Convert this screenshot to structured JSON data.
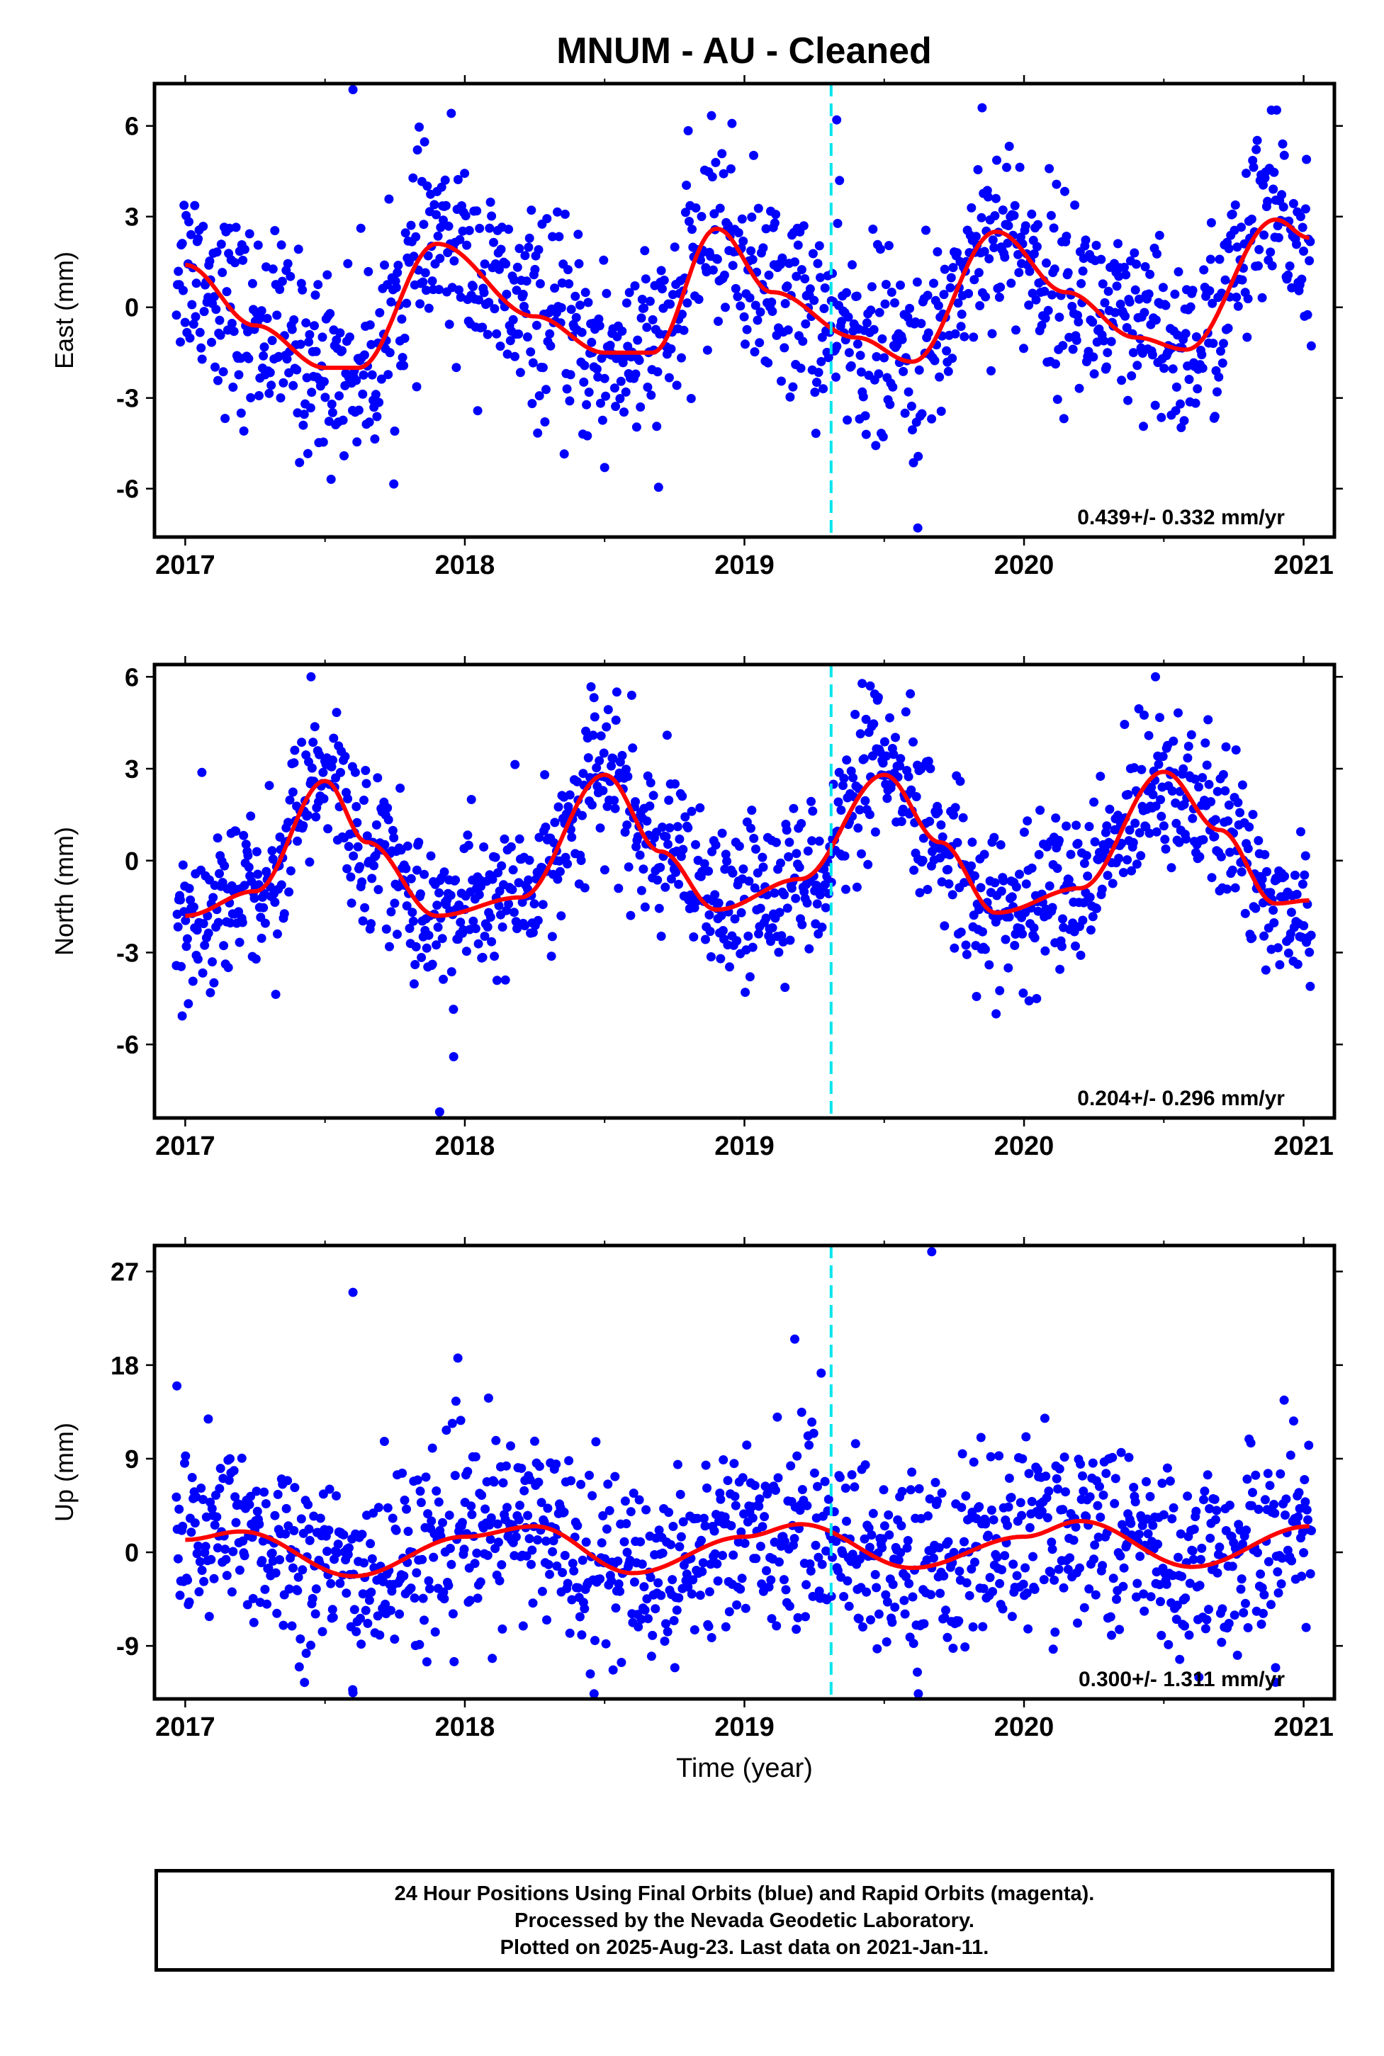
{
  "title": "MNUM  - AU - Cleaned",
  "xlabel": "Time (year)",
  "caption": [
    "24 Hour Positions Using Final Orbits (blue) and Rapid Orbits (magenta).",
    "Processed by the Nevada Geodetic Laboratory.",
    "Plotted on 2025-Aug-23. Last data on 2021-Jan-11."
  ],
  "colors": {
    "points": "#0000ff",
    "fit": "#ff0000",
    "event_line": "#00e5ee",
    "frame": "#000000"
  },
  "chart_data": [
    {
      "type": "scatter",
      "name": "east",
      "ylabel": "East (mm)",
      "xlim": [
        2016.89,
        2021.11
      ],
      "ylim": [
        -7.6,
        7.4
      ],
      "yticks": [
        -6,
        -3,
        0,
        3,
        6
      ],
      "xticks": [
        2017,
        2018,
        2019,
        2020,
        2021
      ],
      "event_line_x": 2019.31,
      "rate_label": "0.439+/- 0.332 mm/yr",
      "fit": {
        "x": [
          2017.0,
          2017.25,
          2017.5,
          2017.62,
          2017.9,
          2018.25,
          2018.5,
          2018.67,
          2018.9,
          2019.1,
          2019.4,
          2019.6,
          2019.9,
          2020.15,
          2020.4,
          2020.58,
          2020.9,
          2021.02
        ],
        "y": [
          1.4,
          -0.6,
          -2.0,
          -2.0,
          2.1,
          -0.3,
          -1.5,
          -1.5,
          2.6,
          0.5,
          -1.0,
          -1.8,
          2.5,
          0.5,
          -1.0,
          -1.4,
          2.9,
          2.3
        ]
      },
      "series": [
        {
          "name": "",
          "scatter": 1.6,
          "extra": [
            [
              2017.6,
              7.2
            ],
            [
              2019.33,
              6.2
            ],
            [
              2019.62,
              -7.3
            ],
            [
              2019.85,
              6.6
            ],
            [
              2018.5,
              -5.3
            ],
            [
              2017.2,
              -3.5
            ]
          ]
        }
      ]
    },
    {
      "type": "scatter",
      "name": "north",
      "ylabel": "North (mm)",
      "xlim": [
        2016.89,
        2021.11
      ],
      "ylim": [
        -8.4,
        6.4
      ],
      "yticks": [
        -6,
        -3,
        0,
        3,
        6
      ],
      "xticks": [
        2017,
        2018,
        2019,
        2020,
        2021
      ],
      "event_line_x": 2019.31,
      "rate_label": "0.204+/- 0.296 mm/yr",
      "fit": {
        "x": [
          2017.0,
          2017.25,
          2017.5,
          2017.65,
          2017.9,
          2018.2,
          2018.5,
          2018.7,
          2018.9,
          2019.2,
          2019.5,
          2019.7,
          2019.9,
          2020.2,
          2020.5,
          2020.7,
          2020.9,
          2021.02
        ],
        "y": [
          -1.8,
          -1.0,
          2.6,
          0.6,
          -1.8,
          -1.2,
          2.8,
          0.3,
          -1.6,
          -0.6,
          2.8,
          0.6,
          -1.7,
          -0.9,
          2.9,
          1.0,
          -1.4,
          -1.3
        ]
      },
      "series": [
        {
          "name": "",
          "scatter": 1.3,
          "extra": [
            [
              2017.45,
              6.0
            ],
            [
              2017.91,
              -8.2
            ],
            [
              2017.96,
              -6.4
            ],
            [
              2020.47,
              6.0
            ],
            [
              2019.9,
              -5.0
            ],
            [
              2019.45,
              5.7
            ]
          ]
        }
      ]
    },
    {
      "type": "scatter",
      "name": "up",
      "ylabel": "Up (mm)",
      "xlim": [
        2016.89,
        2021.11
      ],
      "ylim": [
        -14.1,
        29.5
      ],
      "yticks": [
        -9,
        0,
        9,
        18,
        27
      ],
      "xticks": [
        2017,
        2018,
        2019,
        2020,
        2021
      ],
      "event_line_x": 2019.31,
      "rate_label": "0.300+/- 1.311 mm/yr",
      "fit": {
        "x": [
          2017.0,
          2017.2,
          2017.6,
          2018.0,
          2018.25,
          2018.6,
          2019.0,
          2019.2,
          2019.6,
          2020.0,
          2020.2,
          2020.6,
          2021.02
        ],
        "y": [
          1.2,
          2.0,
          -2.3,
          1.5,
          2.5,
          -2.0,
          1.5,
          2.7,
          -1.5,
          1.5,
          3.0,
          -1.4,
          2.5
        ]
      },
      "series": [
        {
          "name": "",
          "scatter": 4.5,
          "extra": [
            [
              2017.6,
              25.0
            ],
            [
              2019.67,
              28.9
            ],
            [
              2019.18,
              20.5
            ],
            [
              2017.6,
              -13.5
            ],
            [
              2020.9,
              -12.5
            ],
            [
              2016.97,
              16.0
            ]
          ]
        }
      ]
    }
  ]
}
